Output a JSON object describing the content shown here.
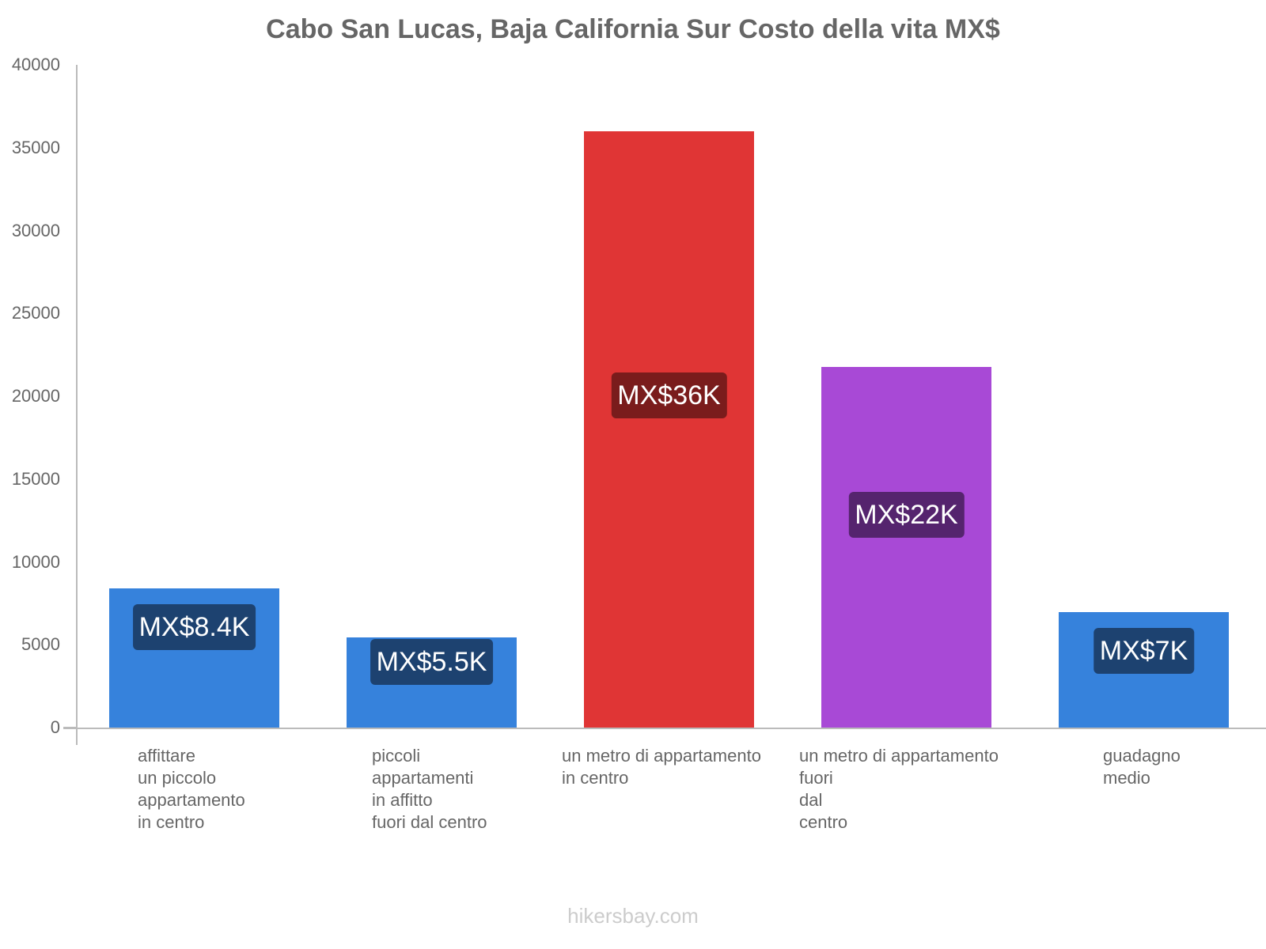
{
  "chart_data": {
    "type": "bar",
    "title": "Cabo San Lucas, Baja California Sur Costo della vita MX$",
    "xlabel": "",
    "ylabel": "",
    "ylim": [
      0,
      40000
    ],
    "yticks": [
      "0",
      "5000",
      "10000",
      "15000",
      "20000",
      "25000",
      "30000",
      "35000",
      "40000"
    ],
    "grid": false,
    "legend": null,
    "categories": [
      "affittare un piccolo appartamento in centro",
      "piccoli appartamenti in affitto fuori dal centro",
      "un metro di appartamento in centro",
      "un metro di appartamento fuori dal centro",
      "guadagno medio"
    ],
    "category_lines": [
      "affittare\nun piccolo\nappartamento\nin centro",
      "piccoli\nappartamenti\nin affitto\nfuori dal centro",
      "un metro di appartamento\nin centro",
      "un metro di appartamento\nfuori\ndal\ncentro",
      "guadagno\nmedio"
    ],
    "values": [
      8400,
      5450,
      36000,
      21750,
      6950
    ],
    "data_labels": [
      "MX$8.4K",
      "MX$5.5K",
      "MX$36K",
      "MX$22K",
      "MX$7K"
    ],
    "colors": [
      "#3682dc",
      "#3682dc",
      "#e03535",
      "#a849d6",
      "#3682dc"
    ],
    "label_colors": [
      "#1d4270",
      "#1d4270",
      "#7a1c1c",
      "#55246e",
      "#1d4270"
    ]
  },
  "footer": {
    "watermark": "hikersbay.com"
  }
}
